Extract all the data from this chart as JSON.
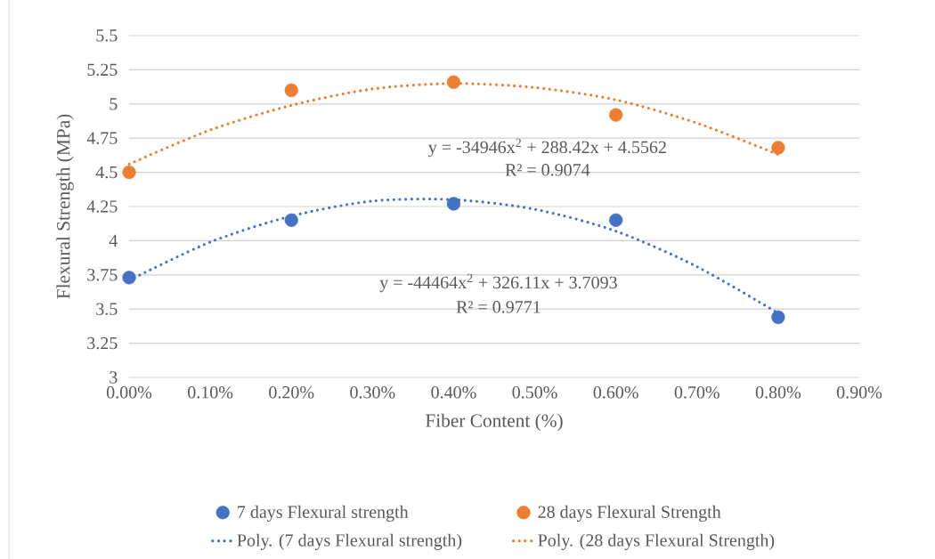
{
  "chart_data": {
    "type": "scatter",
    "xlabel": "Fiber Content (%)",
    "ylabel": "Flexural Strength (MPa)",
    "x": [
      0,
      0.002,
      0.004,
      0.006,
      0.008
    ],
    "xlim": [
      0,
      0.009
    ],
    "xticks": [
      {
        "value": 0,
        "label": "0.00%"
      },
      {
        "value": 0.001,
        "label": "0.10%"
      },
      {
        "value": 0.002,
        "label": "0.20%"
      },
      {
        "value": 0.003,
        "label": "0.30%"
      },
      {
        "value": 0.004,
        "label": "0.40%"
      },
      {
        "value": 0.005,
        "label": "0.50%"
      },
      {
        "value": 0.006,
        "label": "0.60%"
      },
      {
        "value": 0.007,
        "label": "0.70%"
      },
      {
        "value": 0.008,
        "label": "0.80%"
      },
      {
        "value": 0.009,
        "label": "0.90%"
      }
    ],
    "ylim": [
      3,
      5.5
    ],
    "yticks": [
      3,
      3.25,
      3.5,
      3.75,
      4,
      4.25,
      4.5,
      4.75,
      5,
      5.25,
      5.5
    ],
    "grid": "y",
    "legend": "bottom",
    "series": [
      {
        "name": "7 days Flexural strength",
        "marker": "circle",
        "color": "#4472c4",
        "values": [
          3.73,
          4.15,
          4.27,
          4.15,
          3.44
        ]
      },
      {
        "name": "28 days Flexural Strength",
        "marker": "circle",
        "color": "#ed7d31",
        "values": [
          4.5,
          5.1,
          5.16,
          4.92,
          4.68
        ]
      },
      {
        "name": "Poly. (7 days Flexural strength)",
        "type": "line",
        "line_style": "dotted",
        "marker": "none",
        "color": "#4472c4",
        "x": [
          0,
          0.001,
          0.002,
          0.003,
          0.004,
          0.005,
          0.006,
          0.007,
          0.008
        ],
        "values": [
          3.71,
          3.99,
          4.18,
          4.29,
          4.3,
          4.23,
          4.07,
          3.81,
          3.47
        ]
      },
      {
        "name": "Poly. (28 days Flexural Strength)",
        "type": "line",
        "line_style": "dotted",
        "marker": "none",
        "color": "#ed7d31",
        "x": [
          0,
          0.001,
          0.002,
          0.003,
          0.004,
          0.005,
          0.006,
          0.007,
          0.008
        ],
        "values": [
          4.56,
          4.81,
          4.99,
          5.11,
          5.15,
          5.12,
          5.03,
          4.86,
          4.63
        ]
      }
    ],
    "annotations": [
      "y = -34946x$^{2}$ + 288.42x + 4.5562",
      "R² = 0.9074",
      "y = -44464x$^{2}$ + 326.11x + 3.7093",
      "R² = 0.9771"
    ]
  }
}
